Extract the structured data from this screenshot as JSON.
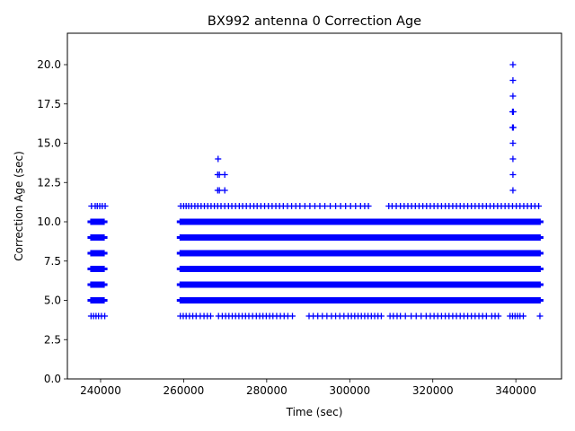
{
  "chart_data": {
    "type": "scatter",
    "title": "BX992 antenna 0 Correction Age",
    "xlabel": "Time (sec)",
    "ylabel": "Correction Age (sec)",
    "xlim": [
      232000,
      351000
    ],
    "ylim": [
      0,
      22
    ],
    "xticks": [
      240000,
      260000,
      280000,
      300000,
      320000,
      340000
    ],
    "yticks": [
      0.0,
      2.5,
      5.0,
      7.5,
      10.0,
      12.5,
      15.0,
      17.5,
      20.0
    ],
    "xtick_labels": [
      "240000",
      "260000",
      "280000",
      "300000",
      "320000",
      "340000"
    ],
    "ytick_labels": [
      "0.0",
      "2.5",
      "5.0",
      "7.5",
      "10.0",
      "12.5",
      "15.0",
      "17.5",
      "20.0"
    ],
    "grid": false,
    "marker": "+",
    "color": "#0000ff",
    "bands": [
      {
        "y": 5,
        "x_ranges": [
          [
            237500,
            241000
          ],
          [
            259000,
            346000
          ]
        ]
      },
      {
        "y": 6,
        "x_ranges": [
          [
            237500,
            241000
          ],
          [
            259000,
            346000
          ]
        ]
      },
      {
        "y": 7,
        "x_ranges": [
          [
            237500,
            241000
          ],
          [
            259000,
            346000
          ]
        ]
      },
      {
        "y": 8,
        "x_ranges": [
          [
            237500,
            241000
          ],
          [
            259000,
            346000
          ]
        ]
      },
      {
        "y": 9,
        "x_ranges": [
          [
            237500,
            241000
          ],
          [
            259000,
            346000
          ]
        ]
      },
      {
        "y": 10,
        "x_ranges": [
          [
            237500,
            241000
          ],
          [
            259000,
            346000
          ]
        ]
      }
    ],
    "series": [
      {
        "y": 11,
        "x": [
          237800,
          238700,
          239200,
          239800,
          240400,
          241100,
          259300,
          260000,
          260600,
          261200,
          261900,
          262700,
          263400,
          264200,
          265000,
          265800,
          266600,
          267400,
          268200,
          269000,
          269900,
          270800,
          271600,
          272500,
          273400,
          274200,
          275100,
          276000,
          276900,
          277700,
          278600,
          279500,
          280400,
          281300,
          282200,
          283100,
          284000,
          285000,
          286000,
          287000,
          288000,
          289200,
          290400,
          291600,
          292800,
          294000,
          295300,
          296600,
          297800,
          299000,
          300200,
          301400,
          302600,
          303600,
          304500,
          309400,
          310200,
          311200,
          312200,
          313100,
          314000,
          314900,
          315800,
          316700,
          317600,
          318500,
          319400,
          320300,
          321200,
          322100,
          323000,
          323900,
          324800,
          325700,
          326600,
          327500,
          328400,
          329300,
          330200,
          331100,
          332000,
          332900,
          333800,
          334700,
          335600,
          336500,
          337400,
          338300,
          339200,
          340100,
          341000,
          341900,
          342800,
          343700,
          344600,
          345500
        ]
      },
      {
        "y": 4,
        "x": [
          237700,
          238300,
          238900,
          239500,
          240200,
          241000,
          259200,
          259900,
          260600,
          261400,
          262200,
          263000,
          264000,
          264900,
          265700,
          266500,
          268400,
          269300,
          270100,
          270900,
          271700,
          272500,
          273300,
          274100,
          274900,
          275700,
          276600,
          277500,
          278300,
          279100,
          279900,
          280700,
          281500,
          282400,
          283300,
          284200,
          285100,
          286200,
          290200,
          291200,
          292300,
          293400,
          294500,
          295600,
          296600,
          297600,
          298600,
          299600,
          300400,
          301200,
          302000,
          302800,
          303600,
          304400,
          305200,
          306000,
          306800,
          307600,
          309700,
          310500,
          311400,
          312200,
          313400,
          314800,
          316000,
          317200,
          318400,
          319400,
          320300,
          321200,
          322100,
          323000,
          323900,
          324800,
          325700,
          326600,
          327500,
          328400,
          329300,
          330200,
          331100,
          332000,
          332900,
          334200,
          335000,
          335800,
          338600,
          339200,
          339800,
          340400,
          341000,
          341800,
          345800
        ]
      },
      {
        "y": 12,
        "x": [
          268200,
          268600,
          269900,
          339300
        ]
      },
      {
        "y": 13,
        "x": [
          268200,
          268600,
          269900,
          339300
        ]
      },
      {
        "y": 14,
        "x": [
          268300,
          339300
        ]
      },
      {
        "y": 15,
        "x": [
          339300
        ]
      },
      {
        "y": 16,
        "x": [
          339200,
          339400
        ]
      },
      {
        "y": 17,
        "x": [
          339200,
          339400
        ]
      },
      {
        "y": 18,
        "x": [
          339300
        ]
      },
      {
        "y": 19,
        "x": [
          339300
        ]
      },
      {
        "y": 20,
        "x": [
          339300
        ]
      }
    ]
  }
}
